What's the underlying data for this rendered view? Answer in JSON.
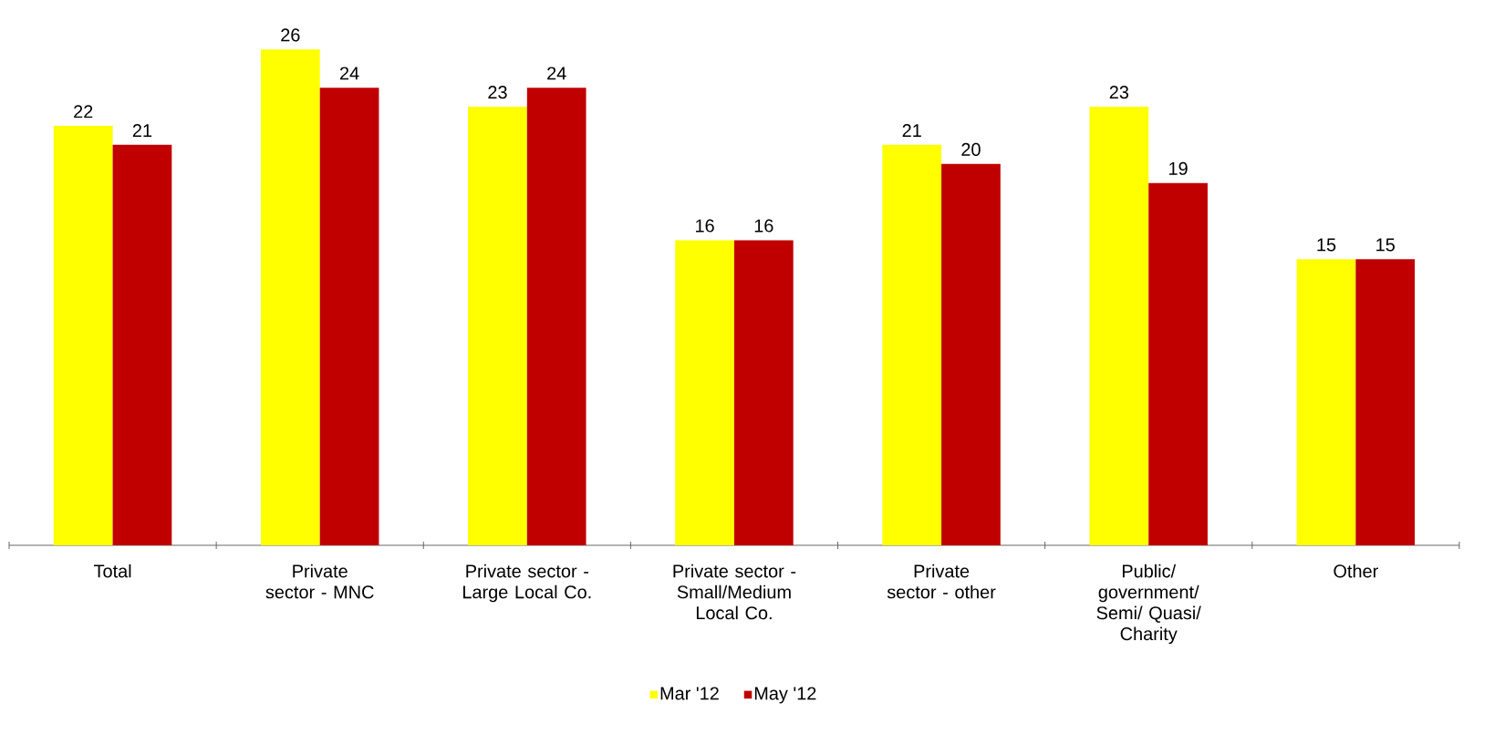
{
  "chart_data": {
    "type": "bar",
    "categories": [
      "Total",
      "Private sector - MNC",
      "Private sector - Large Local Co.",
      "Private sector - Small/Medium Local Co.",
      "Private sector - other",
      "Public/ government/ Semi/ Quasi/ Charity",
      "Other"
    ],
    "series": [
      {
        "name": "Mar '12",
        "color": "#ffff00",
        "values": [
          22,
          26,
          23,
          16,
          21,
          23,
          15
        ]
      },
      {
        "name": "May '12",
        "color": "#c00000",
        "values": [
          21,
          24,
          24,
          16,
          20,
          19,
          15
        ]
      }
    ],
    "data_labels": true,
    "legend": "bottom"
  }
}
